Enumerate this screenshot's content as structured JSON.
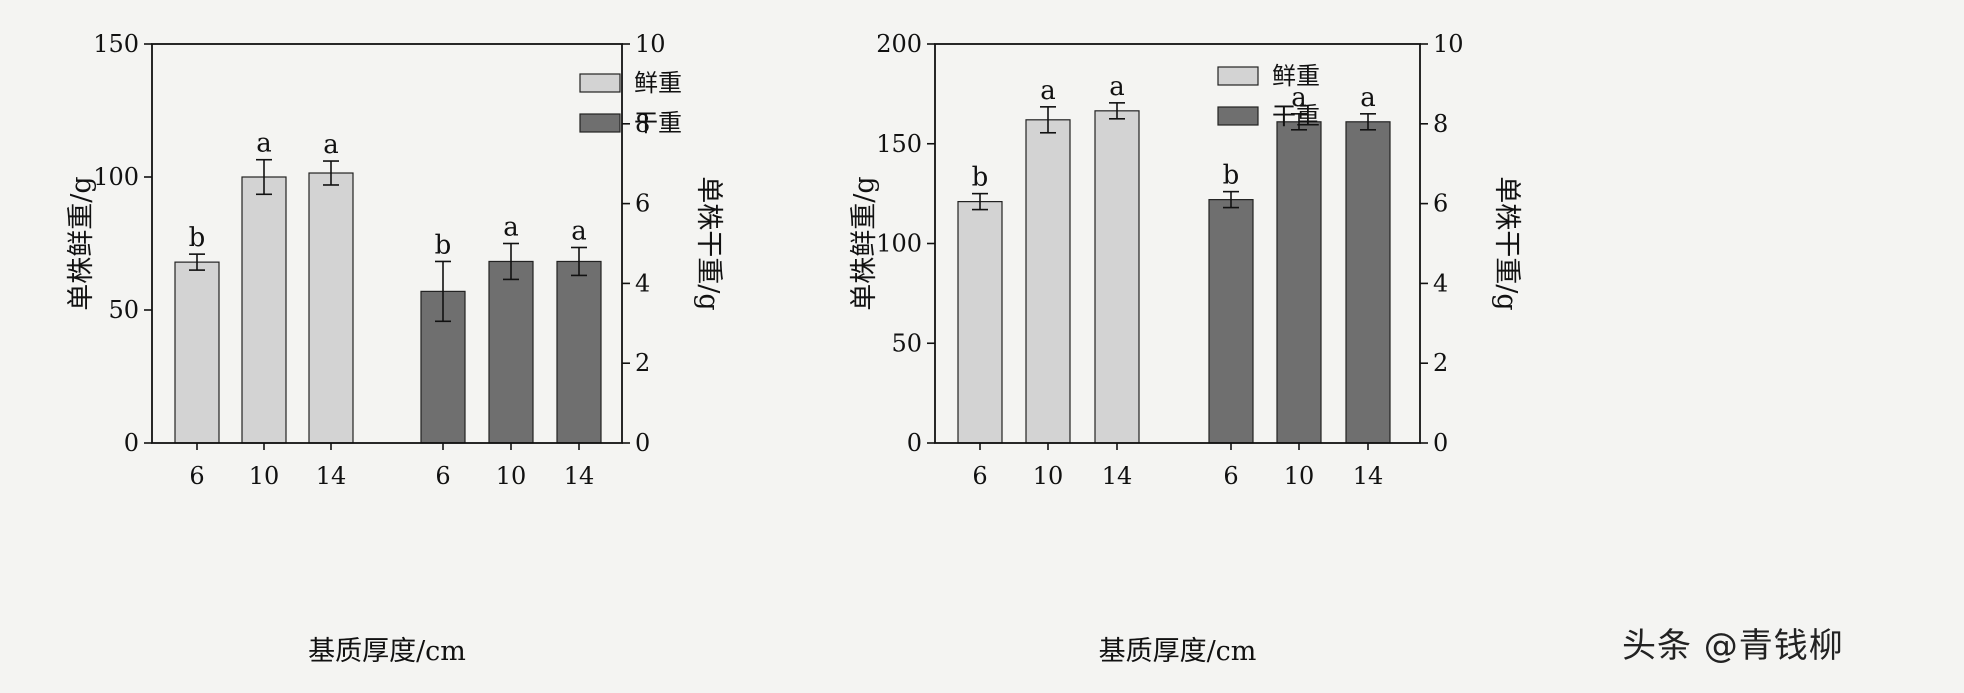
{
  "colors": {
    "fresh": "#d3d3d3",
    "dry": "#6f6f6f",
    "axis": "#111111",
    "background": "#f4f4f2"
  },
  "watermark": "头条 @青钱柳",
  "chart_data": [
    {
      "type": "bar",
      "xlabel": "基质厚度/cm",
      "ylabel_left": "单株鲜重/g",
      "ylabel_right": "单株干重/g",
      "ylim_left": [
        0,
        150
      ],
      "yticks_left": [
        0,
        50,
        100,
        150
      ],
      "ylim_right": [
        0,
        10
      ],
      "yticks_right": [
        0,
        2,
        4,
        6,
        8,
        10
      ],
      "legend_position": "top-right",
      "series": [
        {
          "name": "鲜重",
          "axis": "left",
          "categories": [
            "6",
            "10",
            "14"
          ],
          "values": [
            68,
            100,
            101.5
          ],
          "errors": [
            3,
            6.5,
            4.5
          ],
          "labels": [
            "b",
            "a",
            "a"
          ]
        },
        {
          "name": "干重",
          "axis": "right",
          "categories": [
            "6",
            "10",
            "14"
          ],
          "values": [
            3.8,
            4.55,
            4.55
          ],
          "errors": [
            0.75,
            0.45,
            0.35
          ],
          "labels": [
            "b",
            "a",
            "a"
          ]
        }
      ]
    },
    {
      "type": "bar",
      "xlabel": "基质厚度/cm",
      "ylabel_left": "单株鲜重/g",
      "ylabel_right": "单株干重/g",
      "ylim_left": [
        0,
        200
      ],
      "yticks_left": [
        0,
        50,
        100,
        150,
        200
      ],
      "ylim_right": [
        0,
        10
      ],
      "yticks_right": [
        0,
        2,
        4,
        6,
        8,
        10
      ],
      "legend_position": "top-center",
      "series": [
        {
          "name": "鲜重",
          "axis": "left",
          "categories": [
            "6",
            "10",
            "14"
          ],
          "values": [
            121,
            162,
            166.5
          ],
          "errors": [
            4,
            6.5,
            4
          ],
          "labels": [
            "b",
            "a",
            "a"
          ]
        },
        {
          "name": "干重",
          "axis": "right",
          "categories": [
            "6",
            "10",
            "14"
          ],
          "values": [
            6.1,
            8.05,
            8.05
          ],
          "errors": [
            0.2,
            0.2,
            0.2
          ],
          "labels": [
            "b",
            "a",
            "a"
          ]
        }
      ]
    }
  ]
}
